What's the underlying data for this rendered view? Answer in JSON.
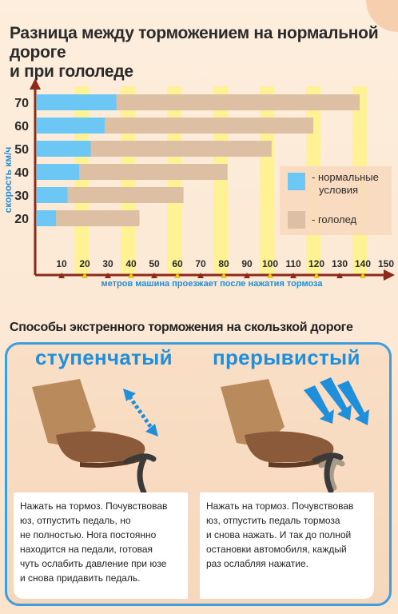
{
  "title_line1": "Разница между торможением на нормальной дороге",
  "title_line2": "и при гололеде",
  "chart_data": {
    "type": "bar",
    "orientation": "horizontal",
    "categories": [
      "70",
      "60",
      "50",
      "40",
      "30",
      "20"
    ],
    "series": [
      {
        "name": "- нормальные условия",
        "values": [
          35,
          30,
          24,
          19,
          14,
          9
        ]
      },
      {
        "name": "- гололед",
        "values": [
          140,
          120,
          102,
          83,
          64,
          45
        ]
      }
    ],
    "xticks": [
      "10",
      "20",
      "30",
      "40",
      "50",
      "60",
      "70",
      "80",
      "90",
      "100",
      "110",
      "120",
      "130",
      "140",
      "150"
    ],
    "xlim": [
      0,
      150
    ],
    "xlabel": "метров машина проезжает после нажатия тормоза",
    "ylabel": "скорость  км/ч",
    "legend_placement": "right",
    "colors": {
      "normal": "#6cc7f4",
      "ice": "#ddbfa3",
      "stripe_yellow": "#fff38a",
      "axis": "#8b2a1a"
    }
  },
  "section2_title": "Способы экстренного торможения на скользкой дороге",
  "method1": {
    "title": "ступенчатый",
    "lines": [
      "Нажать на тормоз. Почувствовав",
      "юз, отпустить педаль, но",
      "не полностью. Нога постоянно",
      "находится на педали, готовая",
      "чуть ослабить давление при юзе",
      "и снова придавить педаль."
    ]
  },
  "method2": {
    "title": "прерывистый",
    "lines": [
      "Нажать на тормоз. Почувствовав",
      "юз, отпустить педаль тормоза",
      "и снова нажать. И так до полной",
      "остановки автомобиля, каждый",
      "раз ослабляя нажатие."
    ]
  },
  "colors": {
    "accent_blue": "#1f8fdc",
    "panel_border": "#3a9ee0",
    "boot": "#8a5a3a",
    "pants": "#b98a5c"
  }
}
